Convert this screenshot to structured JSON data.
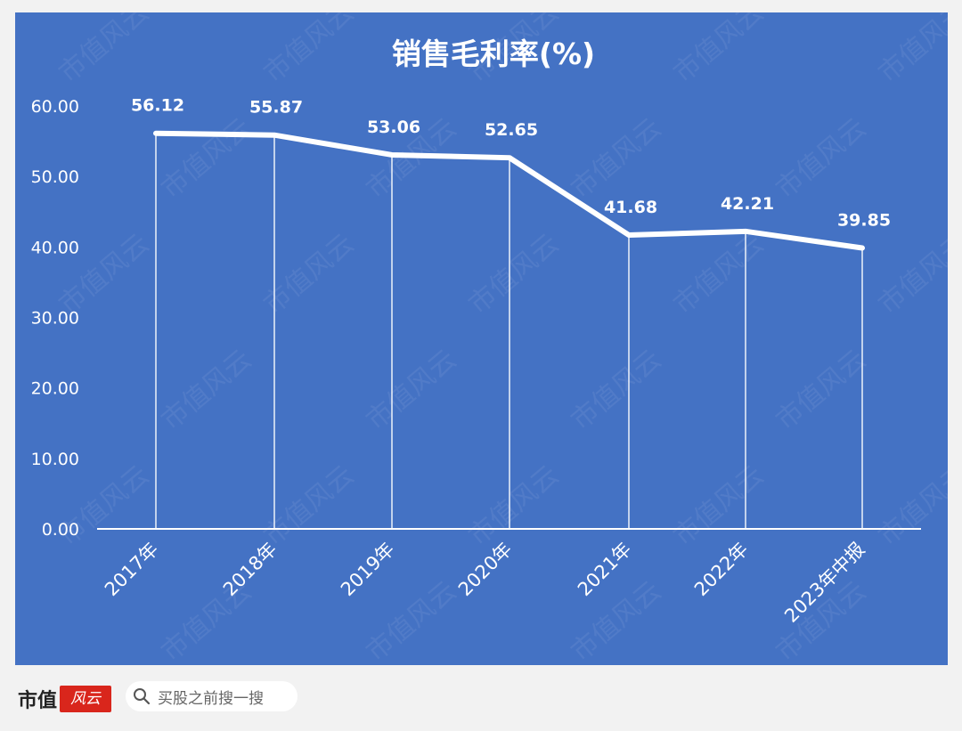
{
  "chart_data": {
    "type": "line",
    "title": "销售毛利率(%)",
    "categories": [
      "2017年",
      "2018年",
      "2019年",
      "2020年",
      "2021年",
      "2022年",
      "2023年中报"
    ],
    "values": [
      56.12,
      55.87,
      53.06,
      52.65,
      41.68,
      42.21,
      39.85
    ],
    "data_labels": [
      "56.12",
      "55.87",
      "53.06",
      "52.65",
      "41.68",
      "42.21",
      "39.85"
    ],
    "ylim": [
      0,
      60
    ],
    "yticks": [
      "0.00",
      "10.00",
      "20.00",
      "30.00",
      "40.00",
      "50.00",
      "60.00"
    ],
    "grid": false,
    "drop_lines": true,
    "legend": "none",
    "colors": {
      "background": "#4472c4",
      "line": "#ffffff",
      "text": "#ffffff"
    }
  },
  "watermark": "市值风云",
  "footer": {
    "brand_text": "市值",
    "brand_seal": "风云",
    "search_label": "买股之前搜一搜"
  }
}
